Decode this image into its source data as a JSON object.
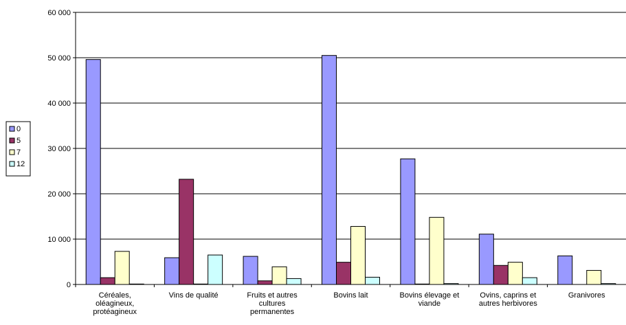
{
  "chart_data": {
    "type": "bar",
    "categories": [
      [
        "Céréales,",
        "oléagineux,",
        "protéagineux"
      ],
      [
        "Vins de qualité"
      ],
      [
        "Fruits et autres",
        "cultures",
        "permanentes"
      ],
      [
        "Bovins lait"
      ],
      [
        "Bovins élevage et",
        "viande"
      ],
      [
        "Ovins, caprins et",
        "autres herbivores"
      ],
      [
        "Granivores"
      ]
    ],
    "series": [
      {
        "name": "0",
        "color": "#9999ff",
        "values": [
          49600,
          5900,
          6200,
          50500,
          27700,
          11100,
          6300
        ]
      },
      {
        "name": "5",
        "color": "#993366",
        "values": [
          1500,
          23200,
          800,
          4900,
          100,
          4200,
          0
        ]
      },
      {
        "name": "7",
        "color": "#ffffcc",
        "values": [
          7300,
          100,
          3900,
          12800,
          14800,
          4900,
          3100
        ]
      },
      {
        "name": "12",
        "color": "#ccffff",
        "values": [
          100,
          6500,
          1300,
          1600,
          200,
          1500,
          200
        ]
      }
    ],
    "ylim": [
      0,
      60000
    ],
    "yticks": [
      "0",
      "10 000",
      "20 000",
      "30 000",
      "40 000",
      "50 000",
      "60 000"
    ],
    "ytick_values": [
      0,
      10000,
      20000,
      30000,
      40000,
      50000,
      60000
    ],
    "grid": true,
    "legend_position": "left"
  }
}
